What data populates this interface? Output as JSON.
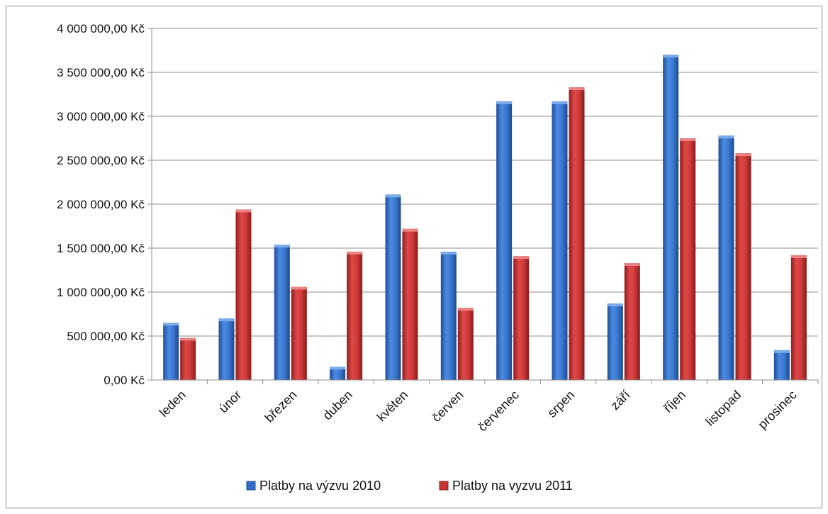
{
  "chart_data": {
    "type": "bar",
    "categories": [
      "leden",
      "únor",
      "březen",
      "duben",
      "květen",
      "červen",
      "červenec",
      "srpen",
      "září",
      "říjen",
      "listopad",
      "prosinec"
    ],
    "series": [
      {
        "name": "Platby na výzvu 2010",
        "color": "#2f6fc9",
        "values": [
          650000,
          700000,
          1540000,
          150000,
          2110000,
          1460000,
          3170000,
          3170000,
          870000,
          3700000,
          2780000,
          340000
        ]
      },
      {
        "name": "Platby na vyzvu 2011",
        "color": "#c83232",
        "values": [
          480000,
          1940000,
          1060000,
          1460000,
          1720000,
          820000,
          1410000,
          3330000,
          1330000,
          2750000,
          2580000,
          1420000
        ]
      }
    ],
    "y_ticks": [
      "0,00 Kč",
      "500 000,00 Kč",
      "1 000 000,00 Kč",
      "1 500 000,00 Kč",
      "2 000 000,00 Kč",
      "2 500 000,00 Kč",
      "3 000 000,00 Kč",
      "3 500 000,00 Kč",
      "4 000 000,00 Kč"
    ],
    "ylim": [
      0,
      4000000
    ],
    "y_step": 500000,
    "grid": true,
    "legend_position": "bottom",
    "title": "",
    "xlabel": "",
    "ylabel": ""
  }
}
